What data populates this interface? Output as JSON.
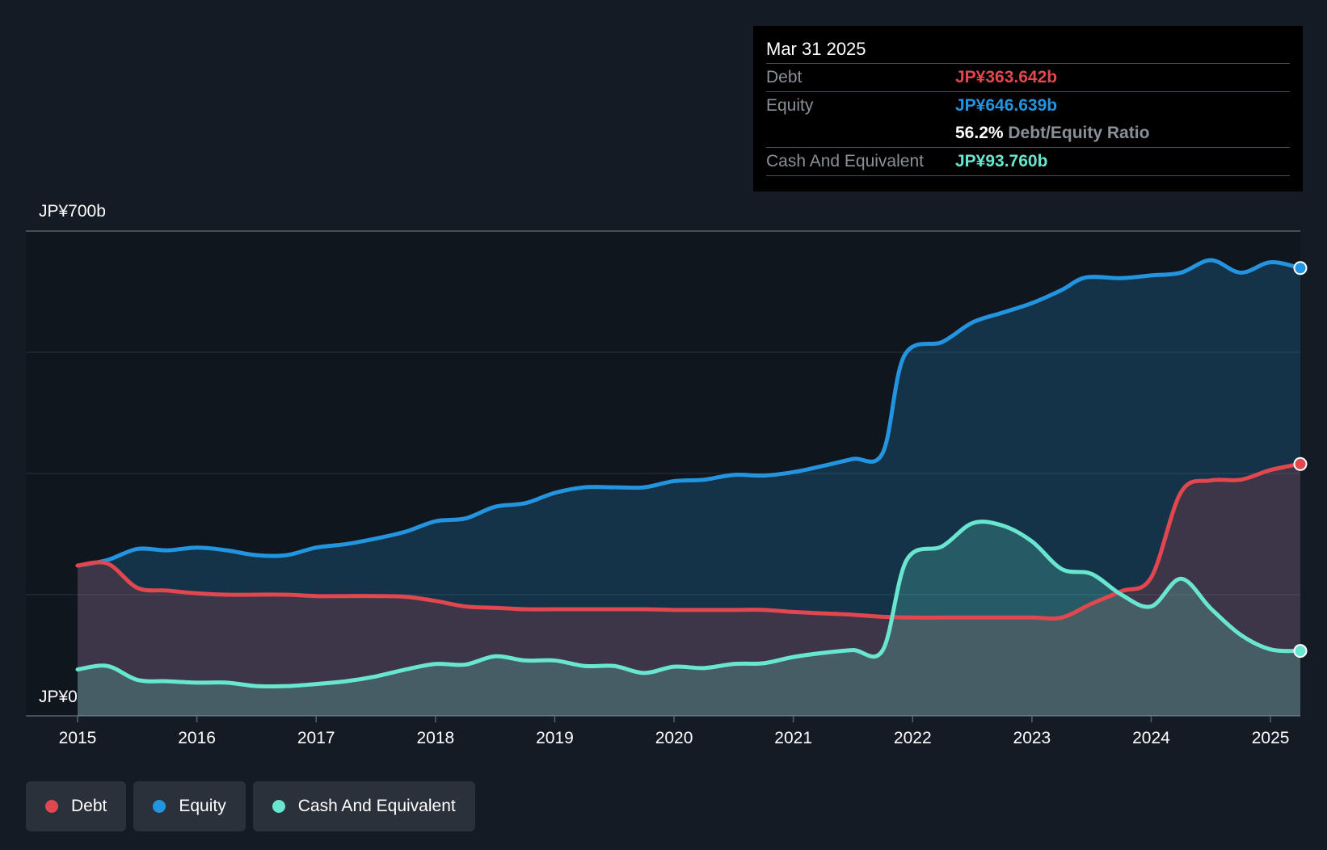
{
  "tooltip": {
    "date": "Mar 31 2025",
    "debt_label": "Debt",
    "debt_value": "JP¥363.642b",
    "equity_label": "Equity",
    "equity_value": "JP¥646.639b",
    "ratio_value": "56.2%",
    "ratio_label": "Debt/Equity Ratio",
    "cash_label": "Cash And Equivalent",
    "cash_value": "JP¥93.760b"
  },
  "legend": {
    "debt": "Debt",
    "equity": "Equity",
    "cash": "Cash And Equivalent"
  },
  "colors": {
    "debt": "#e0474f",
    "equity": "#2394df",
    "cash": "#69e6cf",
    "background": "#151b24"
  },
  "chart_data": {
    "type": "area",
    "title": "",
    "xlabel": "",
    "ylabel": "",
    "y_top_label": "JP¥700b",
    "y_bottom_label": "JP¥0",
    "ylim": [
      0,
      700
    ],
    "xlim": [
      2015.0,
      2025.25
    ],
    "x_ticks": [
      2015,
      2016,
      2017,
      2018,
      2019,
      2020,
      2021,
      2022,
      2023,
      2024,
      2025
    ],
    "series": [
      {
        "name": "Debt",
        "x": [
          2015.0,
          2015.25,
          2015.5,
          2015.75,
          2016.0,
          2016.25,
          2016.5,
          2016.75,
          2017.0,
          2017.25,
          2017.5,
          2017.75,
          2018.0,
          2018.25,
          2018.5,
          2018.75,
          2019.0,
          2019.25,
          2019.5,
          2019.75,
          2020.0,
          2020.25,
          2020.5,
          2020.75,
          2021.0,
          2021.25,
          2021.5,
          2021.75,
          2022.0,
          2022.25,
          2022.5,
          2022.75,
          2023.0,
          2023.25,
          2023.5,
          2023.75,
          2024.0,
          2024.25,
          2024.5,
          2024.75,
          2025.0,
          2025.25
        ],
        "values": [
          217,
          220,
          185,
          181,
          177,
          175,
          175,
          175,
          173,
          173,
          173,
          172,
          166,
          158,
          156,
          154,
          154,
          154,
          154,
          154,
          153,
          153,
          153,
          153,
          150,
          148,
          146,
          143,
          142,
          142,
          142,
          142,
          142,
          142,
          162,
          180,
          200,
          323,
          340,
          341,
          355,
          363.642
        ]
      },
      {
        "name": "Equity",
        "x": [
          2015.0,
          2015.25,
          2015.5,
          2015.75,
          2016.0,
          2016.25,
          2016.5,
          2016.75,
          2017.0,
          2017.25,
          2017.5,
          2017.75,
          2018.0,
          2018.25,
          2018.5,
          2018.75,
          2019.0,
          2019.25,
          2019.5,
          2019.75,
          2020.0,
          2020.25,
          2020.5,
          2020.75,
          2021.0,
          2021.25,
          2021.5,
          2021.75,
          2021.93,
          2022.25,
          2022.5,
          2022.75,
          2023.0,
          2023.25,
          2023.45,
          2023.75,
          2024.0,
          2024.25,
          2024.5,
          2024.75,
          2025.0,
          2025.25
        ],
        "values": [
          217,
          225,
          241,
          239,
          243,
          239,
          232,
          232,
          243,
          248,
          256,
          266,
          281,
          285,
          302,
          307,
          322,
          330,
          330,
          330,
          339,
          341,
          348,
          347,
          352,
          361,
          371,
          380,
          520,
          540,
          568,
          582,
          596,
          615,
          633,
          632,
          636,
          640,
          658,
          640,
          655,
          646.639
        ]
      },
      {
        "name": "Cash And Equivalent",
        "x": [
          2015.0,
          2015.25,
          2015.5,
          2015.75,
          2016.0,
          2016.25,
          2016.5,
          2016.75,
          2017.0,
          2017.25,
          2017.5,
          2017.75,
          2018.0,
          2018.25,
          2018.5,
          2018.75,
          2019.0,
          2019.25,
          2019.5,
          2019.75,
          2020.0,
          2020.25,
          2020.5,
          2020.75,
          2021.0,
          2021.25,
          2021.5,
          2021.75,
          2021.95,
          2022.25,
          2022.5,
          2022.75,
          2023.0,
          2023.25,
          2023.5,
          2023.75,
          2024.0,
          2024.25,
          2024.5,
          2024.75,
          2025.0,
          2025.25
        ],
        "values": [
          67,
          72,
          52,
          50,
          48,
          48,
          43,
          43,
          46,
          50,
          57,
          67,
          75,
          74,
          86,
          80,
          80,
          72,
          72,
          62,
          71,
          69,
          75,
          76,
          85,
          91,
          95,
          95,
          225,
          245,
          278,
          275,
          252,
          212,
          205,
          175,
          158,
          198,
          155,
          117,
          96,
          93.76
        ]
      }
    ]
  }
}
